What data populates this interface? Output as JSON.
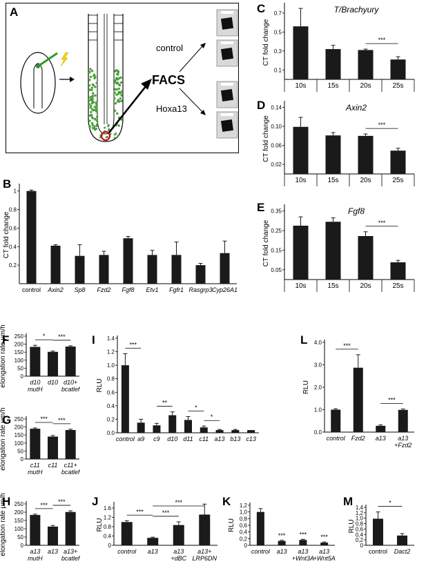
{
  "panel_a": {
    "letter": "A",
    "control_label": "control",
    "hoxa13_label": "Hoxa13",
    "facs_label": "FACS"
  },
  "chart_data": [
    {
      "id": "B",
      "letter": "B",
      "type": "bar",
      "ylabel": "CT fold change",
      "categories": [
        "control",
        "Axin2",
        "Sp8",
        "Fzd2",
        "Fgf8",
        "Etv1",
        "Fgfr1",
        "Rasgrp3",
        "Cyp26A1"
      ],
      "italic_categories": [
        false,
        true,
        true,
        true,
        true,
        true,
        true,
        true,
        true
      ],
      "values": [
        1.0,
        0.41,
        0.3,
        0.31,
        0.49,
        0.31,
        0.31,
        0.2,
        0.33
      ],
      "errors": [
        0.01,
        0.01,
        0.12,
        0.04,
        0.02,
        0.05,
        0.14,
        0.02,
        0.13
      ],
      "yticks": [
        "0.2",
        "0.4",
        "0.6",
        "0.8",
        "1"
      ],
      "ytick_values": [
        0.2,
        0.4,
        0.6,
        0.8,
        1.0
      ],
      "ylim": [
        0,
        1.05
      ],
      "significance": []
    },
    {
      "id": "C",
      "letter": "C",
      "type": "bar",
      "title": "T/Brachyury",
      "ylabel": "CT fold change",
      "categories": [
        "10s",
        "15s",
        "20s",
        "25s"
      ],
      "italic_categories": [
        false,
        false,
        false,
        false
      ],
      "values": [
        0.56,
        0.32,
        0.31,
        0.21
      ],
      "errors": [
        0.19,
        0.04,
        0.01,
        0.03
      ],
      "yticks": [
        "0.1",
        "0.3",
        "0.5",
        "0.7"
      ],
      "ytick_values": [
        0.1,
        0.3,
        0.5,
        0.7
      ],
      "ylim": [
        0,
        0.78
      ],
      "significance": [
        {
          "from": 2,
          "to": 3,
          "label": "***"
        }
      ]
    },
    {
      "id": "D",
      "letter": "D",
      "type": "bar",
      "title": "Axin2",
      "ylabel": "CT fold change",
      "categories": [
        "10s",
        "15s",
        "20s",
        "25s"
      ],
      "italic_categories": [
        false,
        false,
        false,
        false
      ],
      "values": [
        0.099,
        0.081,
        0.08,
        0.049
      ],
      "errors": [
        0.02,
        0.006,
        0.004,
        0.005
      ],
      "yticks": [
        "0.02",
        "0.06",
        "0.10",
        "0.14"
      ],
      "ytick_values": [
        0.02,
        0.06,
        0.1,
        0.14
      ],
      "ylim": [
        0,
        0.148
      ],
      "significance": [
        {
          "from": 2,
          "to": 3,
          "label": "***"
        }
      ]
    },
    {
      "id": "E",
      "letter": "E",
      "type": "bar",
      "title": "Fgf8",
      "ylabel": "CT fold change",
      "categories": [
        "10s",
        "15s",
        "20s",
        "25s"
      ],
      "italic_categories": [
        false,
        false,
        false,
        false
      ],
      "values": [
        0.275,
        0.295,
        0.222,
        0.088
      ],
      "errors": [
        0.045,
        0.02,
        0.022,
        0.01
      ],
      "yticks": [
        "0.05",
        "0.15",
        "0.25",
        "0.35"
      ],
      "ytick_values": [
        0.05,
        0.15,
        0.25,
        0.35
      ],
      "ylim": [
        0,
        0.37
      ],
      "significance": [
        {
          "from": 2,
          "to": 3,
          "label": "***"
        }
      ]
    },
    {
      "id": "F",
      "letter": "F",
      "type": "bar",
      "ylabel": "elongation rate µm/h",
      "categories": [
        "d10 mutH",
        "d10",
        "d10+ bcatlef"
      ],
      "italic_categories": [
        true,
        true,
        true
      ],
      "values": [
        183,
        152,
        185
      ],
      "errors": [
        10,
        5,
        5
      ],
      "yticks": [
        "0",
        "50",
        "100",
        "150",
        "200",
        "250"
      ],
      "ytick_values": [
        0,
        50,
        100,
        150,
        200,
        250
      ],
      "ylim": [
        0,
        250
      ],
      "significance": [
        {
          "from": 0,
          "to": 1,
          "label": "*"
        },
        {
          "from": 1,
          "to": 2,
          "label": "***"
        }
      ]
    },
    {
      "id": "G",
      "letter": "G",
      "type": "bar",
      "ylabel": "elongation rate µm/h",
      "categories": [
        "c11 mutH",
        "c11",
        "c11+ bcatlef"
      ],
      "italic_categories": [
        true,
        true,
        true
      ],
      "values": [
        189,
        140,
        181
      ],
      "errors": [
        5,
        7,
        5
      ],
      "yticks": [
        "0",
        "50",
        "100",
        "150",
        "200",
        "250"
      ],
      "ytick_values": [
        0,
        50,
        100,
        150,
        200,
        250
      ],
      "ylim": [
        0,
        250
      ],
      "significance": [
        {
          "from": 0,
          "to": 1,
          "label": "***"
        },
        {
          "from": 1,
          "to": 2,
          "label": "***"
        }
      ]
    },
    {
      "id": "H",
      "letter": "H",
      "type": "bar",
      "ylabel": "elongation rate µm/h",
      "categories": [
        "a13 mutH",
        "a13",
        "a13+ bcatlef"
      ],
      "italic_categories": [
        true,
        true,
        true
      ],
      "values": [
        183,
        113,
        201
      ],
      "errors": [
        5,
        7,
        7
      ],
      "yticks": [
        "0",
        "50",
        "100",
        "150",
        "200",
        "250"
      ],
      "ytick_values": [
        0,
        50,
        100,
        150,
        200,
        250
      ],
      "ylim": [
        0,
        250
      ],
      "significance": [
        {
          "from": 0,
          "to": 1,
          "label": "***"
        },
        {
          "from": 1,
          "to": 2,
          "label": "***"
        }
      ]
    },
    {
      "id": "I",
      "letter": "I",
      "type": "bar",
      "ylabel": "RLU",
      "categories": [
        "control",
        "a9",
        "c9",
        "d10",
        "d11",
        "c11",
        "a13",
        "b13",
        "c13"
      ],
      "italic_categories": [
        true,
        true,
        true,
        true,
        true,
        true,
        true,
        true,
        true
      ],
      "values": [
        1.0,
        0.15,
        0.11,
        0.26,
        0.19,
        0.08,
        0.04,
        0.04,
        0.04
      ],
      "errors": [
        0.17,
        0.05,
        0.03,
        0.05,
        0.05,
        0.02,
        0.01,
        0.01,
        0.0
      ],
      "yticks": [
        "0.0",
        "0.2",
        "0.4",
        "0.6",
        "0.8",
        "1.0",
        "1.2",
        "1.4"
      ],
      "ytick_values": [
        0,
        0.2,
        0.4,
        0.6,
        0.8,
        1.0,
        1.2,
        1.4
      ],
      "ylim": [
        0,
        1.4
      ],
      "significance": [
        {
          "from": 0,
          "to": 1,
          "label": "***"
        },
        {
          "from": 2,
          "to": 3,
          "label": "**"
        },
        {
          "from": 4,
          "to": 5,
          "label": "*"
        },
        {
          "from": 5,
          "to": 6,
          "label": "*"
        }
      ]
    },
    {
      "id": "L",
      "letter": "L",
      "type": "bar",
      "ylabel": "RLU",
      "categories": [
        "control",
        "Fzd2",
        "a13",
        "a13 +Fzd2"
      ],
      "italic_categories": [
        true,
        true,
        true,
        true
      ],
      "values": [
        1.0,
        2.87,
        0.28,
        0.99
      ],
      "errors": [
        0.04,
        0.58,
        0.04,
        0.04
      ],
      "yticks": [
        "0.0",
        "1.0",
        "2.0",
        "3.0",
        "4.0"
      ],
      "ytick_values": [
        0,
        1,
        2,
        3,
        4
      ],
      "ylim": [
        0,
        4.0
      ],
      "significance": [
        {
          "from": 0,
          "to": 1,
          "label": "***"
        },
        {
          "from": 2,
          "to": 3,
          "label": "***"
        }
      ]
    },
    {
      "id": "J",
      "letter": "J",
      "type": "bar",
      "ylabel": "RLU",
      "categories": [
        "control",
        "a13",
        "a13 +dBC",
        "a13+ LRP6DN"
      ],
      "italic_categories": [
        true,
        true,
        true,
        true
      ],
      "values": [
        1.0,
        0.32,
        0.87,
        1.32
      ],
      "errors": [
        0.06,
        0.03,
        0.14,
        0.45
      ],
      "yticks": [
        "0",
        "0.4",
        "0.8",
        "1.2",
        "1.6"
      ],
      "ytick_values": [
        0,
        0.4,
        0.8,
        1.2,
        1.6
      ],
      "ylim": [
        0,
        1.75
      ],
      "significance": [
        {
          "from": 0,
          "to": 1,
          "label": "***"
        },
        {
          "from": 1,
          "to": 2,
          "label": "***"
        },
        {
          "from": 1,
          "to": 3,
          "label": "***"
        }
      ]
    },
    {
      "id": "K",
      "letter": "K",
      "type": "bar",
      "ylabel": "RLU",
      "categories": [
        "control",
        "a13",
        "a13 +Wnt3A",
        "a13 +Wnt5A"
      ],
      "italic_categories": [
        true,
        true,
        true,
        true
      ],
      "values": [
        1.0,
        0.13,
        0.16,
        0.08
      ],
      "errors": [
        0.1,
        0.02,
        0.02,
        0.02
      ],
      "yticks": [
        "0",
        "0,2",
        "0,4",
        "0,6",
        "0,8",
        "1,0",
        "1,2"
      ],
      "ytick_values": [
        0,
        0.2,
        0.4,
        0.6,
        0.8,
        1.0,
        1.2
      ],
      "ylim": [
        0,
        1.2
      ],
      "bar_labels": [
        "",
        "***",
        "***",
        "***"
      ],
      "significance": []
    },
    {
      "id": "M",
      "letter": "M",
      "type": "bar",
      "ylabel": "RLU",
      "categories": [
        "control",
        "Dact2"
      ],
      "italic_categories": [
        false,
        true
      ],
      "values": [
        0.98,
        0.36
      ],
      "errors": [
        0.25,
        0.07
      ],
      "yticks": [
        "0",
        "0,2",
        "0,4",
        "0,6",
        "0,8",
        "1,0",
        "1,2",
        "1,4"
      ],
      "ytick_values": [
        0,
        0.2,
        0.4,
        0.6,
        0.8,
        1.0,
        1.2,
        1.4
      ],
      "ylim": [
        0,
        1.4
      ],
      "significance": [
        {
          "from": 0,
          "to": 1,
          "label": "*"
        }
      ]
    }
  ]
}
